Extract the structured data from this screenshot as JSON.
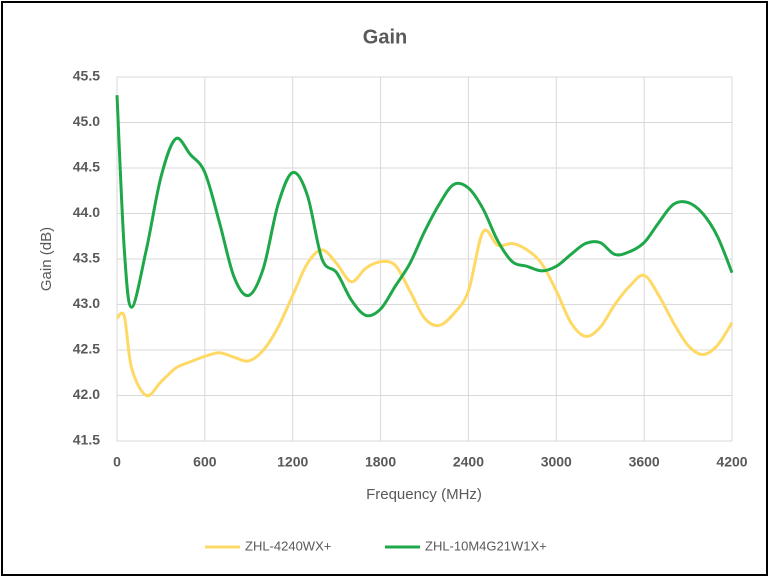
{
  "chart_data": {
    "type": "line",
    "title": "Gain",
    "xlabel": "Frequency (MHz)",
    "ylabel": "Gain (dB)",
    "x": [
      0,
      50,
      100,
      200,
      300,
      400,
      500,
      600,
      700,
      800,
      900,
      1000,
      1100,
      1200,
      1300,
      1400,
      1500,
      1600,
      1700,
      1800,
      1900,
      2000,
      2100,
      2200,
      2300,
      2400,
      2500,
      2600,
      2700,
      2800,
      2900,
      3000,
      3100,
      3200,
      3300,
      3400,
      3500,
      3600,
      3700,
      3800,
      3900,
      4000,
      4100,
      4200
    ],
    "series": [
      {
        "name": "ZHL-4240WX+",
        "color": "#ffd966",
        "values": [
          42.85,
          42.87,
          42.3,
          42.0,
          42.15,
          42.3,
          42.37,
          42.43,
          42.47,
          42.42,
          42.38,
          42.5,
          42.75,
          43.1,
          43.45,
          43.6,
          43.45,
          43.25,
          43.4,
          43.47,
          43.43,
          43.15,
          42.85,
          42.77,
          42.9,
          43.15,
          43.8,
          43.65,
          43.67,
          43.6,
          43.45,
          43.15,
          42.8,
          42.65,
          42.75,
          43.0,
          43.2,
          43.32,
          43.1,
          42.8,
          42.55,
          42.45,
          42.55,
          42.8
        ]
      },
      {
        "name": "ZHL-10M4G21W1X+",
        "color": "#1ea84a",
        "values": [
          45.3,
          43.6,
          42.97,
          43.6,
          44.4,
          44.82,
          44.65,
          44.45,
          43.9,
          43.3,
          43.1,
          43.4,
          44.1,
          44.45,
          44.2,
          43.5,
          43.35,
          43.05,
          42.88,
          42.95,
          43.2,
          43.45,
          43.8,
          44.1,
          44.32,
          44.28,
          44.05,
          43.7,
          43.47,
          43.42,
          43.37,
          43.42,
          43.55,
          43.67,
          43.68,
          43.55,
          43.58,
          43.68,
          43.9,
          44.1,
          44.12,
          44.0,
          43.75,
          43.35
        ]
      }
    ],
    "xlim": [
      0,
      4200
    ],
    "xticks": [
      0,
      600,
      1200,
      1800,
      2400,
      3000,
      3600,
      4200
    ],
    "ylim": [
      41.5,
      45.5
    ],
    "yticks": [
      41.5,
      {
        "value": 42,
        "label": "42.0"
      },
      42.5,
      {
        "value": 43,
        "label": "43.0"
      },
      43.5,
      {
        "value": 44,
        "label": "44.0"
      },
      44.5,
      {
        "value": 45,
        "label": "45.0"
      },
      45.5
    ],
    "grid": true,
    "legend": "bottom"
  }
}
